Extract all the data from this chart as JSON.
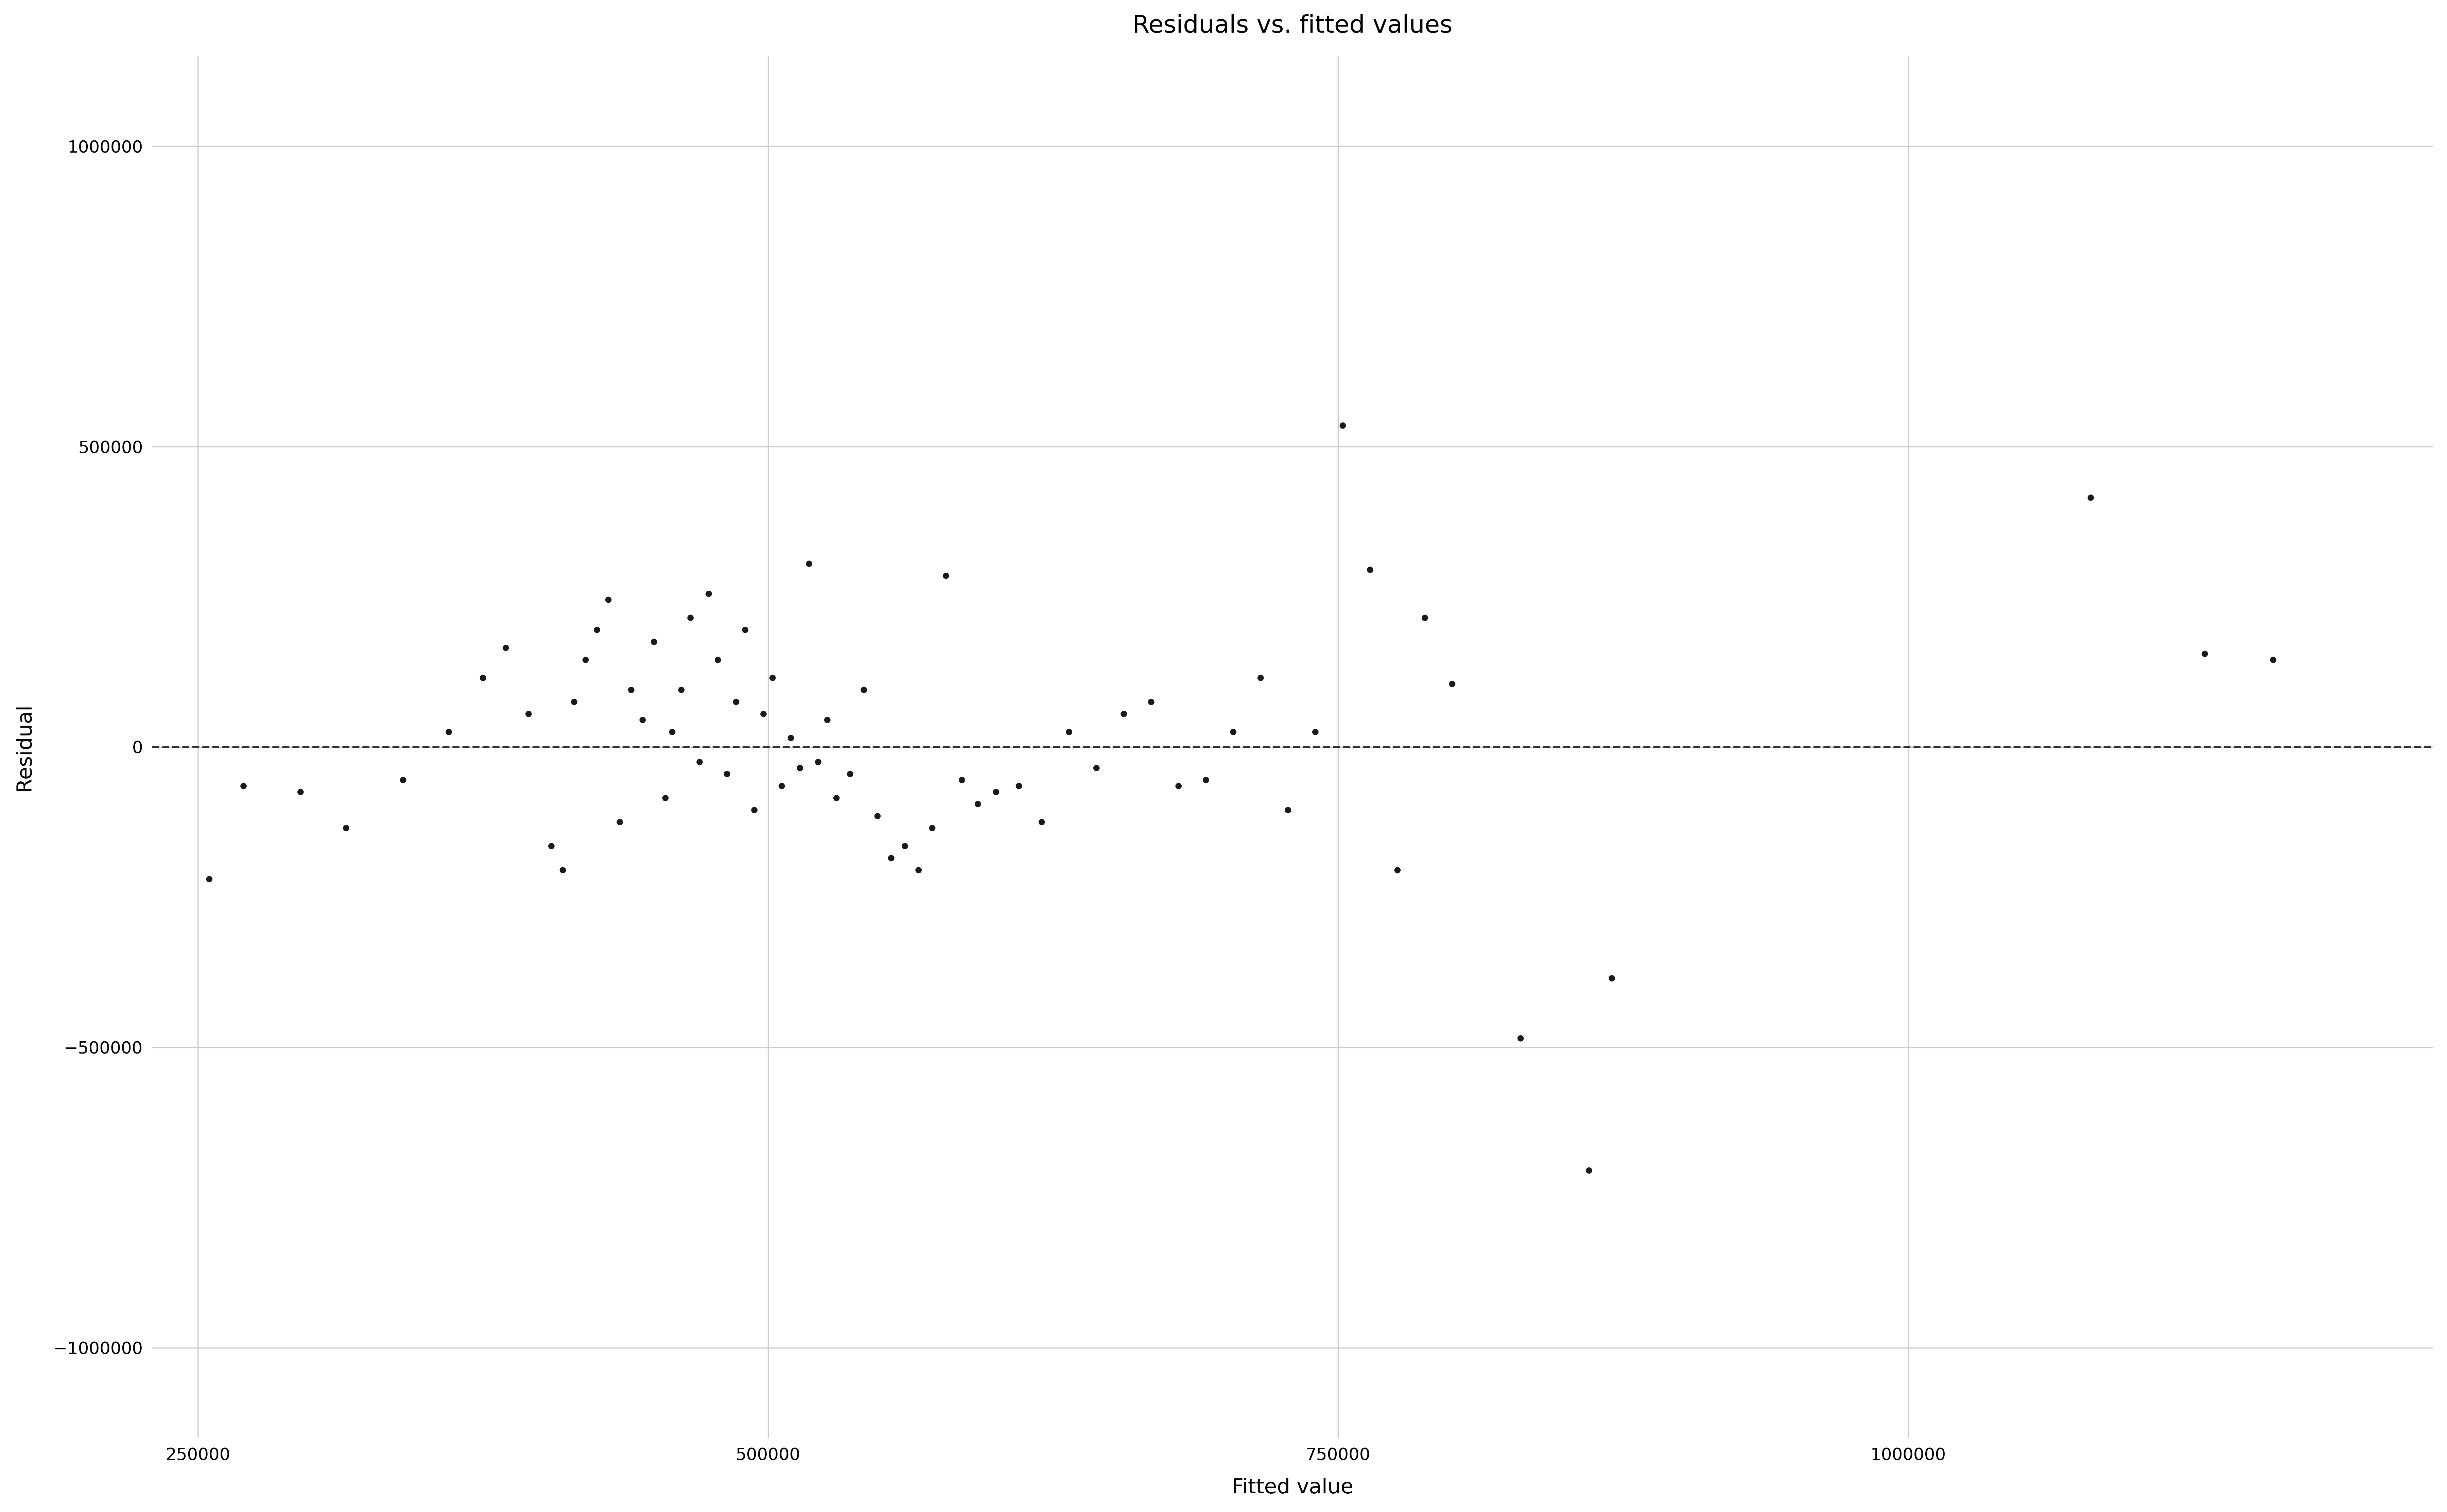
{
  "title": "Residuals vs. fitted values",
  "xlabel": "Fitted value",
  "ylabel": "Residual",
  "title_fontsize": 52,
  "label_fontsize": 44,
  "tick_fontsize": 36,
  "background_color": "#ffffff",
  "grid_color": "#cccccc",
  "point_color": "#1a1a1a",
  "point_size": 180,
  "xlim": [
    230000,
    1230000
  ],
  "ylim": [
    -1150000,
    1150000
  ],
  "xticks": [
    250000,
    500000,
    750000,
    1000000
  ],
  "yticks": [
    -1000000,
    -500000,
    0,
    500000,
    1000000
  ],
  "hline_y": 0,
  "fitted_values": [
    255000,
    270000,
    295000,
    315000,
    340000,
    360000,
    375000,
    385000,
    395000,
    405000,
    410000,
    415000,
    420000,
    425000,
    430000,
    435000,
    440000,
    445000,
    450000,
    455000,
    458000,
    462000,
    466000,
    470000,
    474000,
    478000,
    482000,
    486000,
    490000,
    494000,
    498000,
    502000,
    506000,
    510000,
    514000,
    518000,
    522000,
    526000,
    530000,
    536000,
    542000,
    548000,
    554000,
    560000,
    566000,
    572000,
    578000,
    585000,
    592000,
    600000,
    610000,
    620000,
    632000,
    644000,
    656000,
    668000,
    680000,
    692000,
    704000,
    716000,
    728000,
    740000,
    752000,
    764000,
    776000,
    788000,
    800000,
    830000,
    860000,
    870000,
    1080000,
    1130000,
    1160000
  ],
  "residuals": [
    -220000,
    -65000,
    -75000,
    -135000,
    -55000,
    25000,
    115000,
    165000,
    55000,
    -165000,
    -205000,
    75000,
    145000,
    195000,
    245000,
    -125000,
    95000,
    45000,
    175000,
    -85000,
    25000,
    95000,
    215000,
    -25000,
    255000,
    145000,
    -45000,
    75000,
    195000,
    -105000,
    55000,
    115000,
    -65000,
    15000,
    -35000,
    305000,
    -25000,
    45000,
    -85000,
    -45000,
    95000,
    -115000,
    -185000,
    -165000,
    -205000,
    -135000,
    285000,
    -55000,
    -95000,
    -75000,
    -65000,
    -125000,
    25000,
    -35000,
    55000,
    75000,
    -65000,
    -55000,
    25000,
    115000,
    -105000,
    25000,
    535000,
    295000,
    -205000,
    215000,
    105000,
    -485000,
    -705000,
    -385000,
    415000,
    155000,
    145000
  ]
}
